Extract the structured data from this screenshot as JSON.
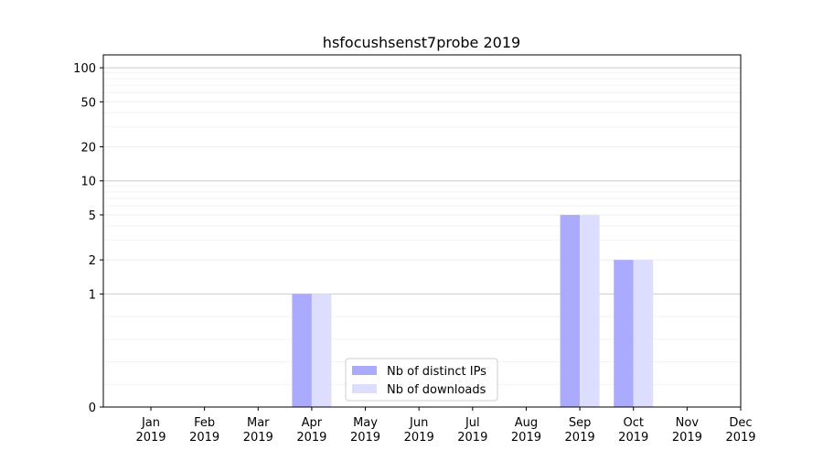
{
  "chart_data": {
    "type": "bar",
    "title": "hsfocushsenst7probe 2019",
    "xlabel": "",
    "ylabel": "",
    "yscale": "symlog",
    "ylim": [
      0,
      130
    ],
    "grid": true,
    "legend_position": "bottom-center",
    "categories": [
      [
        "Jan",
        "2019"
      ],
      [
        "Feb",
        "2019"
      ],
      [
        "Mar",
        "2019"
      ],
      [
        "Apr",
        "2019"
      ],
      [
        "May",
        "2019"
      ],
      [
        "Jun",
        "2019"
      ],
      [
        "Jul",
        "2019"
      ],
      [
        "Aug",
        "2019"
      ],
      [
        "Sep",
        "2019"
      ],
      [
        "Oct",
        "2019"
      ],
      [
        "Nov",
        "2019"
      ],
      [
        "Dec",
        "2019"
      ]
    ],
    "yticks": [
      0,
      1,
      2,
      5,
      10,
      20,
      50,
      100
    ],
    "series": [
      {
        "name": "Nb of distinct IPs",
        "color": "#aaaaff",
        "values": [
          0,
          0,
          0,
          1,
          0,
          0,
          0,
          0,
          5,
          2,
          0,
          0
        ]
      },
      {
        "name": "Nb of downloads",
        "color": "#ddddff",
        "values": [
          0,
          0,
          0,
          1,
          0,
          0,
          0,
          0,
          5,
          2,
          0,
          0
        ]
      }
    ]
  }
}
